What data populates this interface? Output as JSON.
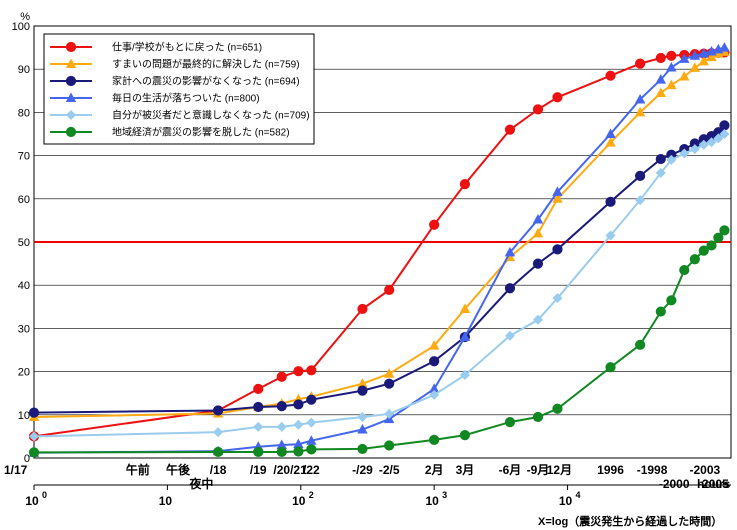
{
  "chart_data": {
    "type": "line",
    "x_scale": "log",
    "xlim": [
      1,
      168000
    ],
    "ylim": [
      0,
      100
    ],
    "grid": "horizontal",
    "legend": "top-left",
    "y_unit": "%",
    "x_unit": "hours",
    "x_caption": "X=log（震災発生から経過した時間）",
    "y_ticks": [
      "0",
      "10",
      "20",
      "30",
      "40",
      "50",
      "60",
      "70",
      "80",
      "90",
      "100"
    ],
    "bottom_ticks": [
      {
        "label": "10",
        "exp": "0",
        "x": 1
      },
      {
        "label": "10",
        "exp": "",
        "x": 10
      },
      {
        "label": "10",
        "exp": "2",
        "x": 100
      },
      {
        "label": "10",
        "exp": "3",
        "x": 1000
      },
      {
        "label": "10",
        "exp": "4",
        "x": 10000
      },
      {
        "label": "hours",
        "exp": "",
        "x": 130000
      }
    ],
    "top_labels": [
      {
        "label": "1/17",
        "x": 1,
        "row": 0
      },
      {
        "label": "午前",
        "x": 6,
        "row": 0
      },
      {
        "label": "午後",
        "x": 12,
        "row": 0
      },
      {
        "label": "/18",
        "x": 24,
        "row": 0
      },
      {
        "label": "夜中",
        "x": 18,
        "row": 1
      },
      {
        "label": "/19",
        "x": 48,
        "row": 0
      },
      {
        "label": "/20",
        "x": 72,
        "row": 0
      },
      {
        "label": "/21",
        "x": 96,
        "row": 0
      },
      {
        "label": "/22",
        "x": 120,
        "row": 0
      },
      {
        "label": "-/29",
        "x": 290,
        "row": 0
      },
      {
        "label": "-2/5",
        "x": 460,
        "row": 0
      },
      {
        "label": "2月",
        "x": 1000,
        "row": 0
      },
      {
        "label": "3月",
        "x": 1700,
        "row": 0
      },
      {
        "label": "-6月",
        "x": 3700,
        "row": 0
      },
      {
        "label": "-9月",
        "x": 6000,
        "row": 0
      },
      {
        "label": "-12月",
        "x": 8400,
        "row": 0
      },
      {
        "label": "1996",
        "x": 21000,
        "row": 0
      },
      {
        "label": "-1998",
        "x": 43000,
        "row": 0
      },
      {
        "label": "-2003",
        "x": 107000,
        "row": 0
      },
      {
        "label": "-2000",
        "x": 63000,
        "row": 1
      },
      {
        "label": "-2005",
        "x": 124000,
        "row": 1
      }
    ],
    "reference_line": {
      "y": 50,
      "color": "#ee0000"
    },
    "series": [
      {
        "name": "仕事/学校がもとに戻った (n=651)",
        "color": "#ee1111",
        "marker": "circle",
        "x": [
          1,
          24,
          48,
          72,
          96,
          120,
          290,
          460,
          1000,
          1700,
          3700,
          6000,
          8400,
          21000,
          35000,
          50000,
          60000,
          75000,
          90000,
          105000,
          120000,
          135000,
          150000
        ],
        "y": [
          5,
          11,
          16,
          18.8,
          20.1,
          20.3,
          34.5,
          38.9,
          54,
          63.4,
          76,
          80.7,
          83.5,
          88.5,
          91.3,
          92.6,
          93.1,
          93.3,
          93.5,
          93.6,
          93.7,
          93.8,
          93.9
        ]
      },
      {
        "name": "すまいの問題が最終的に解決した (n=759)",
        "color": "#ffaa11",
        "marker": "triangle",
        "x": [
          1,
          24,
          48,
          72,
          96,
          120,
          290,
          460,
          1000,
          1700,
          3700,
          6000,
          8400,
          21000,
          35000,
          50000,
          60000,
          75000,
          90000,
          105000,
          120000,
          135000,
          150000
        ],
        "y": [
          9.5,
          10.3,
          11.8,
          12.6,
          13.6,
          14.2,
          17.2,
          19.5,
          26,
          34.5,
          46.5,
          52,
          60,
          73,
          80,
          84.5,
          86.3,
          88.3,
          90.3,
          91.8,
          92.8,
          93.6,
          94
        ]
      },
      {
        "name": "家計への震災の影響がなくなった (n=694)",
        "color": "#1a1a7a",
        "marker": "circle",
        "x": [
          1,
          24,
          48,
          72,
          96,
          120,
          290,
          460,
          1000,
          1700,
          3700,
          6000,
          8400,
          21000,
          35000,
          50000,
          60000,
          75000,
          90000,
          105000,
          120000,
          135000,
          150000
        ],
        "y": [
          10.5,
          11,
          11.8,
          12,
          12.4,
          13.5,
          15.6,
          17.2,
          22.4,
          28,
          39.3,
          45,
          48.3,
          59.3,
          65.3,
          69.2,
          70.2,
          71.5,
          72.8,
          73.8,
          74.5,
          75.4,
          77
        ]
      },
      {
        "name": "毎日の生活が落ちついた (n=800)",
        "color": "#4466ee",
        "marker": "triangle",
        "x": [
          1,
          24,
          48,
          72,
          96,
          120,
          290,
          460,
          1000,
          1700,
          3700,
          6000,
          8400,
          21000,
          35000,
          50000,
          60000,
          75000,
          90000,
          105000,
          120000,
          135000,
          150000
        ],
        "y": [
          1.2,
          1.6,
          2.6,
          3,
          3.2,
          4,
          6.6,
          9,
          16,
          28,
          47.6,
          55.2,
          61.6,
          75,
          83,
          87.6,
          90.4,
          92.4,
          93.1,
          93.6,
          94.1,
          94.6,
          95
        ]
      },
      {
        "name": "自分が被災者だと意識しなくなった (n=709)",
        "color": "#99ccee",
        "marker": "diamond",
        "x": [
          1,
          24,
          48,
          72,
          96,
          120,
          290,
          460,
          1000,
          1700,
          3700,
          6000,
          8400,
          21000,
          35000,
          50000,
          60000,
          75000,
          90000,
          105000,
          120000,
          135000,
          150000
        ],
        "y": [
          5,
          6,
          7.2,
          7.2,
          7.7,
          8.2,
          9.5,
          10.2,
          14.6,
          19.2,
          28.3,
          32,
          37,
          51.5,
          59.7,
          66,
          69,
          70.5,
          71.5,
          72.5,
          73.1,
          74,
          75
        ]
      },
      {
        "name": "地域経済が震災の影響を脱した (n=582)",
        "color": "#118822",
        "marker": "circle",
        "x": [
          1,
          24,
          48,
          72,
          96,
          120,
          290,
          460,
          1000,
          1700,
          3700,
          6000,
          8400,
          21000,
          35000,
          50000,
          60000,
          75000,
          90000,
          105000,
          120000,
          135000,
          150000
        ],
        "y": [
          1.3,
          1.4,
          1.4,
          1.4,
          1.5,
          2,
          2.1,
          2.9,
          4.2,
          5.3,
          8.3,
          9.5,
          11.4,
          21,
          26.2,
          33.9,
          36.5,
          43.5,
          46,
          48,
          49.2,
          51,
          52.7
        ]
      }
    ]
  }
}
